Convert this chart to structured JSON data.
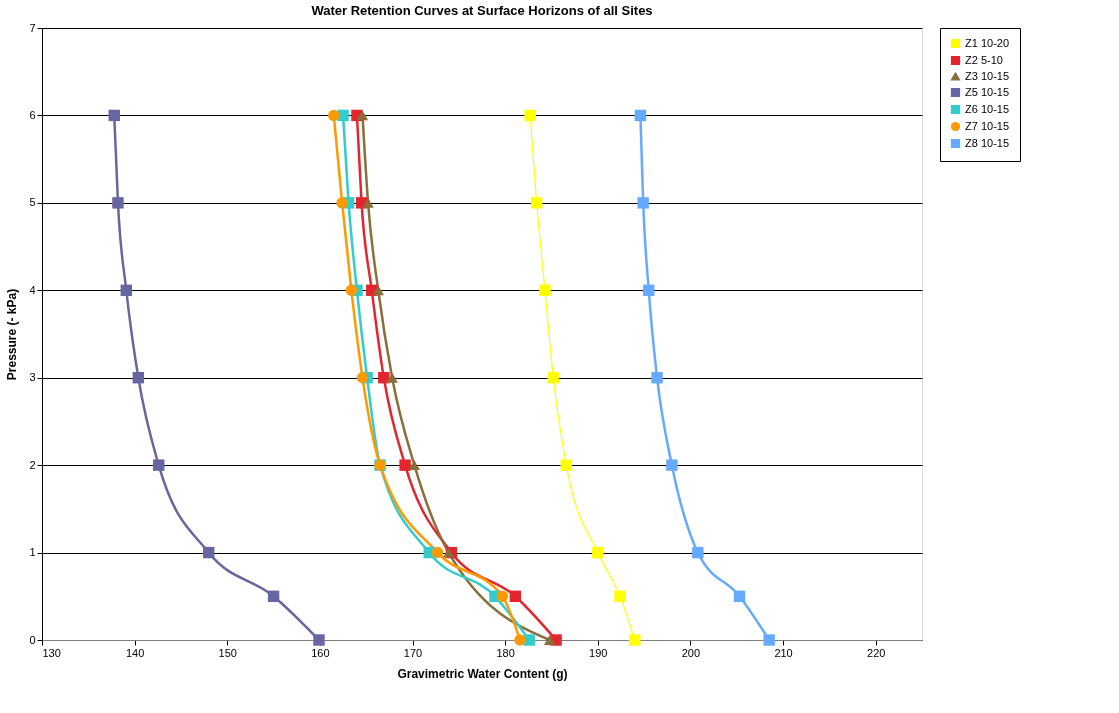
{
  "chart_data": {
    "type": "line",
    "title": "Water Retention Curves at Surface Horizons of all Sites",
    "xlabel": "Gravimetric Water Content (g)",
    "ylabel": "Pressure (- kPa)",
    "xlim": [
      130,
      225
    ],
    "xticks": [
      130,
      140,
      150,
      160,
      170,
      180,
      190,
      200,
      210,
      220
    ],
    "ylim": [
      0,
      7
    ],
    "yticks": [
      0,
      1,
      2,
      3,
      4,
      5,
      6,
      7
    ],
    "grid": "y",
    "legend": "right",
    "series": [
      {
        "name": "Z1 10-20",
        "color": "#ffff00",
        "marker": "square",
        "x": [
          194.0,
          192.4,
          190.0,
          186.6,
          185.2,
          184.3,
          183.4,
          182.7
        ],
        "values": [
          0,
          0.5,
          1,
          2,
          3,
          4,
          5,
          6
        ]
      },
      {
        "name": "Z2 5-10",
        "color": "#e3262e",
        "marker": "square",
        "x": [
          185.5,
          181.1,
          174.2,
          169.2,
          166.9,
          165.6,
          164.5,
          164.0
        ],
        "values": [
          0,
          0.5,
          1,
          2,
          3,
          4,
          5,
          6
        ]
      },
      {
        "name": "Z3 10-15",
        "color": "#8b6f3a",
        "marker": "triangle",
        "x": [
          184.8,
          173.9,
          170.2,
          167.8,
          166.3,
          165.2,
          164.6
        ],
        "values": [
          0,
          1,
          2,
          3,
          4,
          5,
          6
        ]
      },
      {
        "name": "Z5 10-15",
        "color": "#6666a0",
        "marker": "square",
        "x": [
          159.9,
          155.0,
          148.0,
          142.6,
          140.4,
          139.1,
          138.2,
          137.8
        ],
        "values": [
          0,
          0.5,
          1,
          2,
          3,
          4,
          5,
          6
        ]
      },
      {
        "name": "Z6 10-15",
        "color": "#33cccc",
        "marker": "square",
        "x": [
          182.6,
          178.9,
          171.8,
          166.5,
          165.1,
          164.0,
          163.1,
          162.5
        ],
        "values": [
          0,
          0.5,
          1,
          2,
          3,
          4,
          5,
          6
        ]
      },
      {
        "name": "Z7 10-15",
        "color": "#ff9900",
        "marker": "circle",
        "x": [
          181.6,
          179.7,
          172.7,
          166.5,
          164.6,
          163.4,
          162.4,
          161.5
        ],
        "values": [
          0,
          0.5,
          1,
          2,
          3,
          4,
          5,
          6
        ]
      },
      {
        "name": "Z8 10-15",
        "color": "#66aaff",
        "marker": "square",
        "x": [
          208.5,
          205.3,
          200.8,
          198.0,
          196.4,
          195.5,
          194.9,
          194.6
        ],
        "values": [
          0,
          0.5,
          1,
          2,
          3,
          4,
          5,
          6
        ]
      }
    ]
  }
}
